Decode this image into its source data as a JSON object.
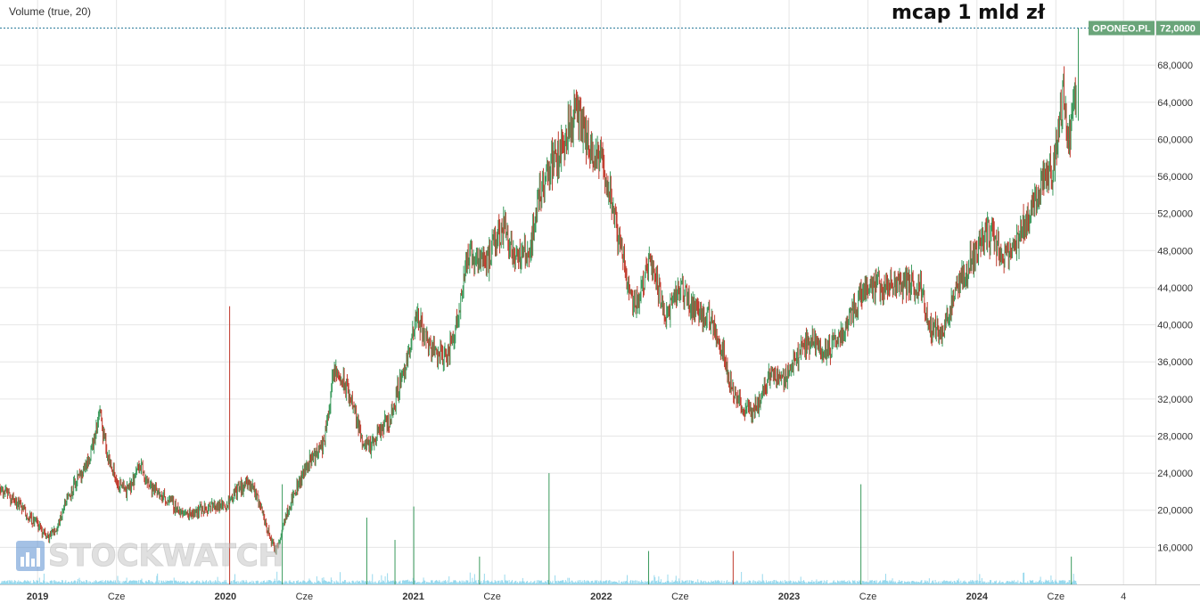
{
  "indicator_label": "Volume (true, 20)",
  "annotation": "mcap 1 mld zł",
  "watermark": "STOCKWATCH",
  "colors": {
    "up": "#3a9a5c",
    "down": "#c0392b",
    "volume": "#7fcfe8",
    "grid": "#e6e6e6",
    "badge": "#6aa57a"
  },
  "chart_data": {
    "type": "candlestick",
    "ticker": "OPONEO.PL",
    "last_price": "72,0000",
    "y_ticks": [
      "16,0000",
      "20,0000",
      "24,0000",
      "28,0000",
      "32,0000",
      "36,0000",
      "40,0000",
      "44,0000",
      "48,0000",
      "52,0000",
      "56,0000",
      "60,0000",
      "64,0000",
      "68,0000"
    ],
    "y_tick_values": [
      16,
      20,
      24,
      28,
      32,
      36,
      40,
      44,
      48,
      52,
      56,
      60,
      64,
      68
    ],
    "x_ticks": [
      {
        "label": "2019",
        "t": 2019.0
      },
      {
        "label": "Cze",
        "t": 2019.42
      },
      {
        "label": "2020",
        "t": 2020.0
      },
      {
        "label": "Cze",
        "t": 2020.42
      },
      {
        "label": "2021",
        "t": 2021.0
      },
      {
        "label": "Cze",
        "t": 2021.42
      },
      {
        "label": "2022",
        "t": 2022.0
      },
      {
        "label": "Cze",
        "t": 2022.42
      },
      {
        "label": "2023",
        "t": 2023.0
      },
      {
        "label": "Cze",
        "t": 2023.42
      },
      {
        "label": "2024",
        "t": 2024.0
      },
      {
        "label": "Cze",
        "t": 2024.42
      },
      {
        "label": "4",
        "t": 2024.78
      }
    ],
    "x_range": [
      2018.8,
      2024.95
    ],
    "y_range": [
      12,
      72
    ],
    "price_path": [
      [
        2018.8,
        22.5
      ],
      [
        2018.88,
        21
      ],
      [
        2018.95,
        19.5
      ],
      [
        2019.0,
        18.5
      ],
      [
        2019.05,
        17
      ],
      [
        2019.1,
        18
      ],
      [
        2019.15,
        21
      ],
      [
        2019.2,
        23
      ],
      [
        2019.25,
        24
      ],
      [
        2019.3,
        27.5
      ],
      [
        2019.33,
        30.5
      ],
      [
        2019.37,
        26
      ],
      [
        2019.42,
        23
      ],
      [
        2019.48,
        22
      ],
      [
        2019.55,
        25
      ],
      [
        2019.6,
        22.5
      ],
      [
        2019.7,
        21
      ],
      [
        2019.78,
        19.5
      ],
      [
        2019.85,
        20
      ],
      [
        2019.95,
        20.5
      ],
      [
        2020.0,
        20.5
      ],
      [
        2020.05,
        22
      ],
      [
        2020.12,
        23
      ],
      [
        2020.18,
        21
      ],
      [
        2020.22,
        18
      ],
      [
        2020.27,
        15.5
      ],
      [
        2020.32,
        19.5
      ],
      [
        2020.38,
        22.5
      ],
      [
        2020.45,
        25.5
      ],
      [
        2020.52,
        27
      ],
      [
        2020.55,
        31
      ],
      [
        2020.58,
        35
      ],
      [
        2020.62,
        34
      ],
      [
        2020.67,
        32
      ],
      [
        2020.72,
        28
      ],
      [
        2020.77,
        26.5
      ],
      [
        2020.82,
        28.5
      ],
      [
        2020.88,
        30
      ],
      [
        2020.93,
        34
      ],
      [
        2020.98,
        37
      ],
      [
        2021.02,
        41
      ],
      [
        2021.07,
        38.5
      ],
      [
        2021.12,
        37
      ],
      [
        2021.18,
        36.5
      ],
      [
        2021.23,
        40
      ],
      [
        2021.28,
        47
      ],
      [
        2021.35,
        47.5
      ],
      [
        2021.4,
        47
      ],
      [
        2021.48,
        51
      ],
      [
        2021.55,
        47
      ],
      [
        2021.62,
        48
      ],
      [
        2021.67,
        54
      ],
      [
        2021.72,
        57
      ],
      [
        2021.77,
        58
      ],
      [
        2021.82,
        61
      ],
      [
        2021.87,
        63
      ],
      [
        2021.92,
        60
      ],
      [
        2021.96,
        57.5
      ],
      [
        2022.0,
        58
      ],
      [
        2022.04,
        55
      ],
      [
        2022.08,
        50
      ],
      [
        2022.12,
        47
      ],
      [
        2022.17,
        42
      ],
      [
        2022.22,
        44
      ],
      [
        2022.26,
        48
      ],
      [
        2022.3,
        44
      ],
      [
        2022.35,
        41
      ],
      [
        2022.42,
        44
      ],
      [
        2022.48,
        42
      ],
      [
        2022.55,
        41
      ],
      [
        2022.6,
        40
      ],
      [
        2022.65,
        37
      ],
      [
        2022.7,
        33
      ],
      [
        2022.75,
        31
      ],
      [
        2022.8,
        30.5
      ],
      [
        2022.85,
        32
      ],
      [
        2022.9,
        35
      ],
      [
        2022.95,
        34
      ],
      [
        2023.0,
        35
      ],
      [
        2023.05,
        37
      ],
      [
        2023.12,
        38.5
      ],
      [
        2023.2,
        37
      ],
      [
        2023.28,
        39
      ],
      [
        2023.35,
        42
      ],
      [
        2023.42,
        44.5
      ],
      [
        2023.5,
        44
      ],
      [
        2023.6,
        44.5
      ],
      [
        2023.7,
        44
      ],
      [
        2023.75,
        40
      ],
      [
        2023.8,
        39
      ],
      [
        2023.85,
        41
      ],
      [
        2023.9,
        44
      ],
      [
        2023.95,
        46
      ],
      [
        2024.0,
        48
      ],
      [
        2024.05,
        50
      ],
      [
        2024.1,
        49
      ],
      [
        2024.15,
        47
      ],
      [
        2024.2,
        48
      ],
      [
        2024.25,
        51
      ],
      [
        2024.3,
        53
      ],
      [
        2024.35,
        56
      ],
      [
        2024.4,
        57
      ],
      [
        2024.43,
        60
      ],
      [
        2024.46,
        65
      ],
      [
        2024.48,
        60
      ],
      [
        2024.5,
        61
      ],
      [
        2024.52,
        66
      ],
      [
        2024.53,
        64
      ]
    ],
    "volume_spikes": [
      {
        "t": 2020.02,
        "h": 0.5
      },
      {
        "t": 2020.3,
        "h": 0.18
      },
      {
        "t": 2020.75,
        "h": 0.12
      },
      {
        "t": 2020.9,
        "h": 0.08
      },
      {
        "t": 2021.0,
        "h": 0.14
      },
      {
        "t": 2021.35,
        "h": 0.05
      },
      {
        "t": 2021.72,
        "h": 0.2
      },
      {
        "t": 2022.25,
        "h": 0.06
      },
      {
        "t": 2022.7,
        "h": 0.06
      },
      {
        "t": 2023.38,
        "h": 0.18
      },
      {
        "t": 2024.5,
        "h": 0.05
      }
    ]
  }
}
